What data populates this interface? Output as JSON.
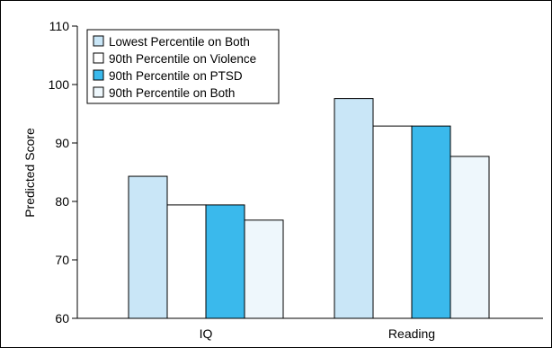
{
  "chart_data": {
    "type": "bar",
    "title": "",
    "xlabel": "",
    "ylabel": "Predicted Score",
    "ylim": [
      60,
      110
    ],
    "yticks": [
      60,
      70,
      80,
      90,
      100,
      110
    ],
    "categories": [
      "IQ",
      "Reading"
    ],
    "legend_position": "top-left",
    "grid": false,
    "series": [
      {
        "name": "Lowest Percentile on Both",
        "values": [
          84.3,
          97.6
        ],
        "color": "#c9e6f7"
      },
      {
        "name": "90th Percentile on Violence",
        "values": [
          79.4,
          92.9
        ],
        "color": "#ffffff"
      },
      {
        "name": "90th Percentile on PTSD",
        "values": [
          79.4,
          92.9
        ],
        "color": "#3ab9ec"
      },
      {
        "name": "90th Percentile on Both",
        "values": [
          76.8,
          87.7
        ],
        "color": "#eef7fc"
      }
    ]
  }
}
